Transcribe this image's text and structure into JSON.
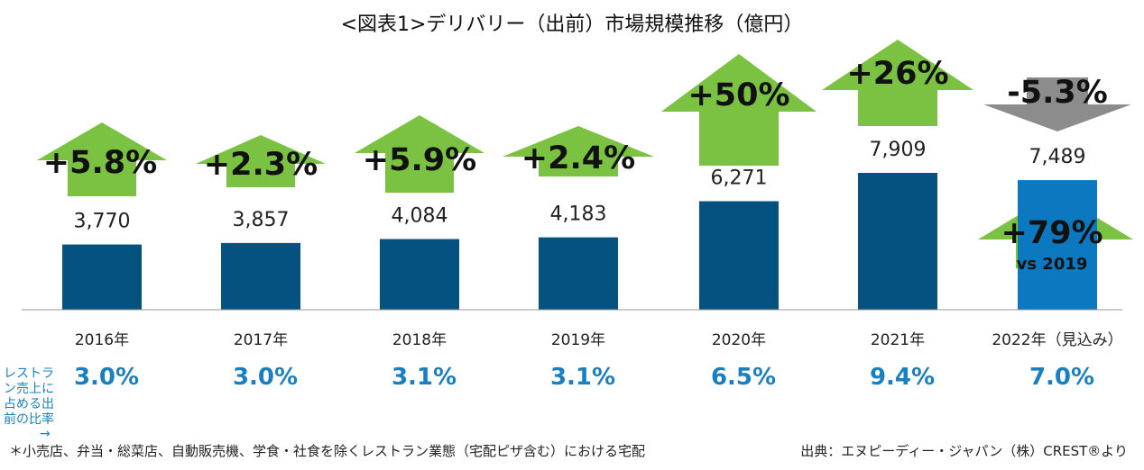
{
  "chart_data": {
    "type": "bar",
    "title": "<図表1>デリバリー（出前）市場規模推移（億円）",
    "categories": [
      "2016年",
      "2017年",
      "2018年",
      "2019年",
      "2020年",
      "2021年",
      "2022年（見込み）"
    ],
    "values": [
      3770,
      3857,
      4084,
      4183,
      6271,
      7909,
      7489
    ],
    "value_labels": [
      "3,770",
      "3,857",
      "4,084",
      "4,183",
      "6,271",
      "7,909",
      "7,489"
    ],
    "growth_labels": [
      "+5.8%",
      "+2.3%",
      "+5.9%",
      "+2.4%",
      "+50%",
      "+26%",
      "-5.3%"
    ],
    "growth_values": [
      5.8,
      2.3,
      5.9,
      2.4,
      50,
      26,
      -5.3
    ],
    "extra_annotation": {
      "label": "+79%",
      "sub": "vs 2019",
      "category": "2022年（見込み）"
    },
    "share_row_label": [
      "レストラ",
      "ン売上に",
      "占める出",
      "前の比率",
      "→"
    ],
    "share_values": [
      "3.0%",
      "3.0%",
      "3.1%",
      "3.1%",
      "6.5%",
      "9.4%",
      "7.0%"
    ],
    "ylim": [
      0,
      9500
    ],
    "grid": false,
    "colors": {
      "bar": "#05517f",
      "bar_highlight": "#0b78bf",
      "arrow_up": "#7cc242",
      "arrow_down": "#8c8c8c",
      "share_text": "#1a7fc1"
    }
  },
  "footer": {
    "note": "＊小売店、弁当・総菜店、自動販売機、学食・社食を除くレストラン業態（宅配ピザ含む）における宅配",
    "source": "出典：エヌピーディー・ジャパン（株）CREST®より"
  }
}
